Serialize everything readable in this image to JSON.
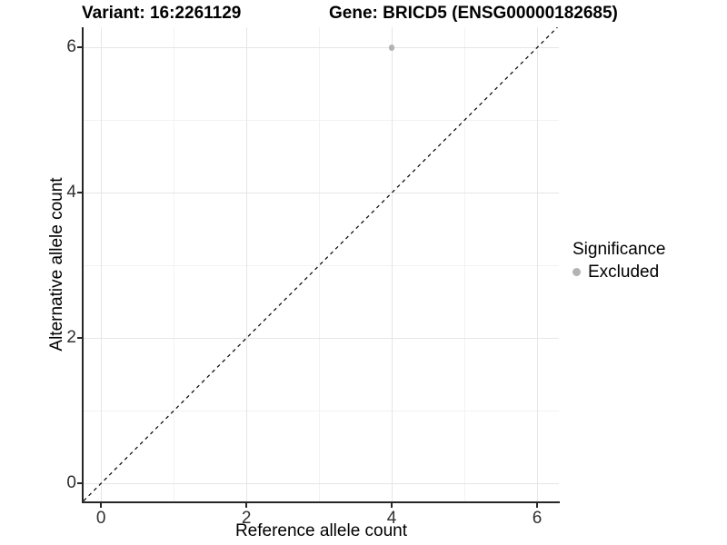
{
  "titles": {
    "variant": "Variant: 16:2261129",
    "gene": "Gene: BRICD5 (ENSG00000182685)"
  },
  "axes": {
    "x_label": "Reference allele count",
    "y_label": "Alternative allele count"
  },
  "legend": {
    "title": "Significance",
    "items": [
      {
        "label": "Excluded",
        "color": "#b3b3b3"
      }
    ]
  },
  "colors": {
    "background": "#ffffff",
    "axis_line": "#262626",
    "tick_text": "#303030",
    "grid_major": "#e6e6e6",
    "grid_minor": "#f2f2f2",
    "point_excluded": "#b3b3b3",
    "identity_line": "#000000"
  },
  "chart_data": {
    "type": "scatter",
    "title": "Variant: 16:2261129   Gene: BRICD5 (ENSG00000182685)",
    "xlabel": "Reference allele count",
    "ylabel": "Alternative allele count",
    "xlim": [
      -0.24,
      6.3
    ],
    "ylim": [
      -0.26,
      6.28
    ],
    "x_ticks": [
      0,
      2,
      4,
      6
    ],
    "y_ticks": [
      0,
      2,
      4,
      6
    ],
    "x_minor_ticks": [
      1,
      3,
      5
    ],
    "y_minor_ticks": [
      1,
      3,
      5
    ],
    "grid": true,
    "legend_position": "right",
    "series": [
      {
        "name": "Excluded",
        "color": "#b3b3b3",
        "points": [
          {
            "x": 4,
            "y": 6
          }
        ]
      }
    ],
    "reference_line": {
      "type": "identity",
      "style": "dashed",
      "color": "#000000",
      "dash": [
        4,
        4
      ]
    }
  }
}
